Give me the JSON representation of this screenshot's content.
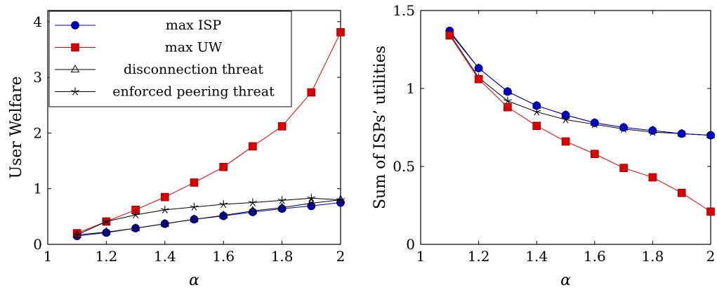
{
  "chart_data": [
    {
      "type": "line",
      "xlabel": "α",
      "ylabel": "User Welfare",
      "xlim": [
        1,
        2
      ],
      "ylim": [
        0,
        4.2
      ],
      "xticks": [
        "1",
        "1.2",
        "1.4",
        "1.6",
        "1.8",
        "2"
      ],
      "yticks": [
        "0",
        "1",
        "2",
        "3",
        "4"
      ],
      "legend_position": "top-left",
      "x": [
        1.1,
        1.2,
        1.3,
        1.4,
        1.5,
        1.6,
        1.7,
        1.8,
        1.9,
        2.0
      ],
      "series": [
        {
          "name": "max ISP",
          "color": "#0000cc",
          "marker": "circle",
          "values": [
            0.15,
            0.21,
            0.29,
            0.37,
            0.45,
            0.51,
            0.58,
            0.64,
            0.69,
            0.75
          ]
        },
        {
          "name": "max UW",
          "color": "#dd0000",
          "marker": "square",
          "values": [
            0.2,
            0.41,
            0.62,
            0.85,
            1.11,
            1.39,
            1.76,
            2.12,
            2.73,
            3.81
          ]
        },
        {
          "name": "disconnection threat",
          "color": "#000000",
          "marker": "triangle",
          "values": [
            0.17,
            0.22,
            0.29,
            0.37,
            0.45,
            0.52,
            0.6,
            0.66,
            0.74,
            0.8
          ]
        },
        {
          "name": "enforced peering threat",
          "color": "#000000",
          "marker": "star",
          "values": [
            0.17,
            0.41,
            0.53,
            0.62,
            0.67,
            0.72,
            0.75,
            0.79,
            0.83,
            0.8
          ]
        }
      ]
    },
    {
      "type": "line",
      "xlabel": "α",
      "ylabel": "Sum of ISPs’ utilities",
      "xlim": [
        1,
        2
      ],
      "ylim": [
        0,
        1.5
      ],
      "xticks": [
        "1",
        "1.2",
        "1.4",
        "1.6",
        "1.8",
        "2"
      ],
      "yticks": [
        "0",
        "0.5",
        "1",
        "1.5"
      ],
      "x": [
        1.1,
        1.2,
        1.3,
        1.4,
        1.5,
        1.6,
        1.7,
        1.8,
        1.9,
        2.0
      ],
      "series": [
        {
          "color": "#000000",
          "marker": "triangle",
          "values": [
            1.36,
            1.13,
            0.98,
            0.89,
            0.83,
            0.78,
            0.75,
            0.73,
            0.71,
            0.7
          ]
        },
        {
          "color": "#000000",
          "marker": "star",
          "values": [
            1.35,
            1.07,
            0.92,
            0.85,
            0.8,
            0.77,
            0.74,
            0.72,
            0.71,
            0.7
          ]
        },
        {
          "color": "#0000cc",
          "marker": "circle",
          "values": [
            1.37,
            1.13,
            0.98,
            0.89,
            0.83,
            0.78,
            0.75,
            0.73,
            0.71,
            0.7
          ]
        },
        {
          "color": "#dd0000",
          "marker": "square",
          "values": [
            1.34,
            1.06,
            0.88,
            0.76,
            0.66,
            0.58,
            0.49,
            0.43,
            0.33,
            0.21
          ]
        }
      ]
    }
  ]
}
